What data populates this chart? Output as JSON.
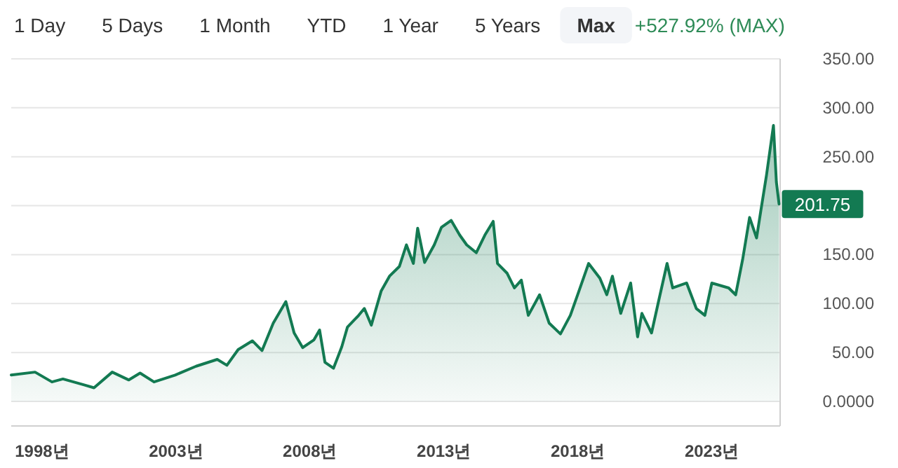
{
  "chart_data": {
    "type": "area",
    "annotations": [
      "1 Day",
      "5 Days",
      "1 Month",
      "YTD",
      "1 Year",
      "5 Years",
      "Max",
      "+527.92% (MAX)",
      {
        "text": "201.75",
        "x": 2025.51,
        "y": 201.75
      }
    ],
    "x": [
      1996.85,
      1997.74,
      1998.37,
      1998.78,
      1999.57,
      1999.94,
      2000.62,
      2001.24,
      2001.66,
      2002.18,
      2002.97,
      2003.75,
      2004.54,
      2004.9,
      2005.32,
      2005.85,
      2006.21,
      2006.63,
      2007.1,
      2007.41,
      2007.73,
      2008.15,
      2008.36,
      2008.56,
      2008.88,
      2009.19,
      2009.4,
      2009.82,
      2010.03,
      2010.29,
      2010.66,
      2010.97,
      2011.34,
      2011.6,
      2011.86,
      2012.02,
      2012.28,
      2012.64,
      2012.91,
      2013.27,
      2013.59,
      2013.85,
      2014.21,
      2014.53,
      2014.84,
      2015.0,
      2015.36,
      2015.63,
      2015.89,
      2016.15,
      2016.57,
      2016.93,
      2017.35,
      2017.72,
      2018.03,
      2018.4,
      2018.82,
      2019.08,
      2019.29,
      2019.6,
      2019.97,
      2020.23,
      2020.39,
      2020.75,
      2021.01,
      2021.33,
      2021.54,
      2022.06,
      2022.42,
      2022.74,
      2023.0,
      2023.63,
      2023.89,
      2024.15,
      2024.41,
      2024.67,
      2024.83,
      2025.04,
      2025.3,
      2025.41,
      2025.51
    ],
    "series": [
      {
        "color": "#137a52",
        "values": [
          27,
          30,
          20,
          23,
          17,
          14,
          30,
          22,
          29,
          20,
          27,
          36,
          43,
          37,
          53,
          62,
          52,
          80,
          102,
          70,
          55,
          63,
          73,
          40,
          34,
          56,
          76,
          88,
          95,
          78,
          113,
          128,
          138,
          160,
          141,
          177,
          142,
          160,
          178,
          185,
          170,
          160,
          152,
          170,
          184,
          141,
          131,
          116,
          124,
          88,
          109,
          80,
          69,
          88,
          112,
          141,
          126,
          109,
          128,
          90,
          121,
          66,
          90,
          70,
          102,
          141,
          116,
          121,
          95,
          88,
          121,
          116,
          109,
          145,
          188,
          167,
          195,
          231,
          282,
          224,
          201.75
        ]
      }
    ],
    "xlim": [
      1996.85,
      2025.55
    ],
    "xticks": [
      {
        "value": 1998,
        "label": "1998년"
      },
      {
        "value": 2003,
        "label": "2003년"
      },
      {
        "value": 2008,
        "label": "2008년"
      },
      {
        "value": 2013,
        "label": "2013년"
      },
      {
        "value": 2018,
        "label": "2018년"
      },
      {
        "value": 2023,
        "label": "2023년"
      }
    ],
    "ylim": [
      -25,
      350
    ],
    "yticks": [
      {
        "value": 0,
        "label": "0.0000"
      },
      {
        "value": 50,
        "label": "50.00"
      },
      {
        "value": 100,
        "label": "100.00"
      },
      {
        "value": 150,
        "label": "150.00"
      },
      {
        "value": 200,
        "label": null
      },
      {
        "value": 250,
        "label": "250.00"
      },
      {
        "value": 300,
        "label": "300.00"
      },
      {
        "value": 350,
        "label": "350.00"
      }
    ],
    "grid": "y",
    "marker": "none",
    "line_style": "solid"
  }
}
